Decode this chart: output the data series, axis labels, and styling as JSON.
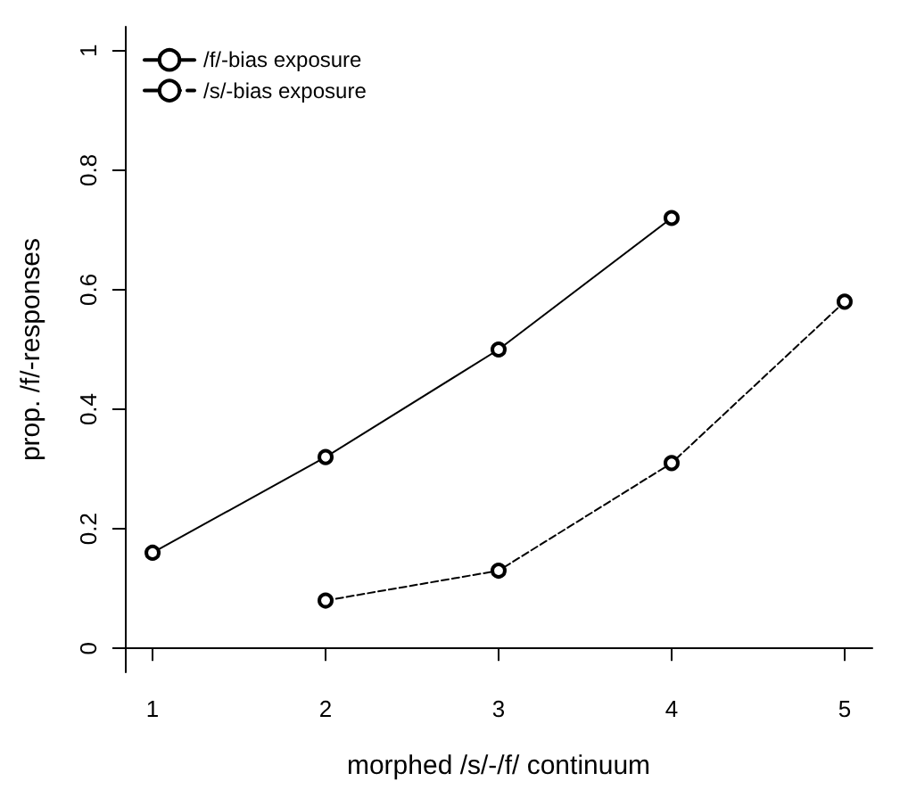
{
  "chart_data": {
    "type": "line",
    "xlabel": "morphed /s/-/f/ continuum",
    "ylabel": "prop. /f/-responses",
    "series": [
      {
        "name": "/f/-bias exposure",
        "color": "#000000",
        "line_style": "solid",
        "x": [
          1,
          2,
          3,
          4
        ],
        "values": [
          0.16,
          0.32,
          0.5,
          0.72
        ]
      },
      {
        "name": "/s/-bias exposure",
        "color": "#000000",
        "line_style": "dashed",
        "x": [
          2,
          3,
          4,
          5
        ],
        "values": [
          0.08,
          0.13,
          0.31,
          0.58
        ]
      }
    ],
    "xlim": [
      0.84,
      5.16
    ],
    "xticks": [
      1,
      2,
      3,
      4,
      5
    ],
    "ylim": [
      -0.04,
      1.04
    ],
    "yticks": [
      0,
      0.2,
      0.4,
      0.6,
      0.8,
      1
    ],
    "grid": false,
    "legend": "top left",
    "marker": "circle"
  }
}
